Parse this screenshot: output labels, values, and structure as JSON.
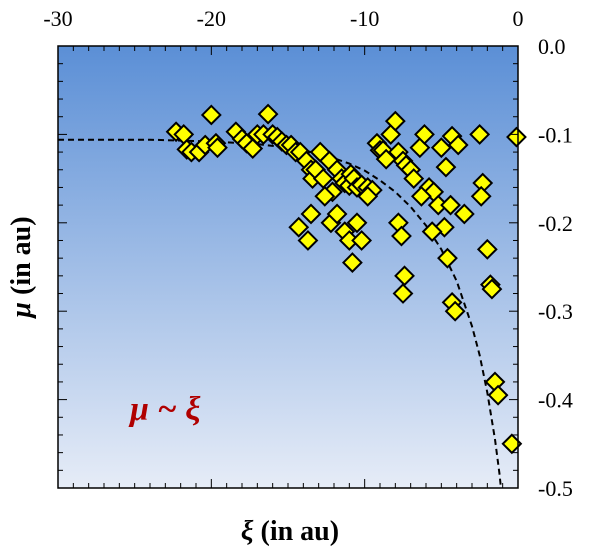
{
  "chart_data": {
    "type": "scatter",
    "xlabel_symbol": "ξ",
    "xlabel_text": " (in au)",
    "ylabel_symbol": "μ",
    "ylabel_text": " (in au)",
    "annotation": "μ ~ ξ",
    "xlim": [
      -30,
      0
    ],
    "ylim": [
      -0.5,
      0.0
    ],
    "x_ticks": [
      -30,
      -20,
      -10,
      0
    ],
    "y_ticks": [
      0.0,
      -0.1,
      -0.2,
      -0.3,
      -0.4,
      -0.5
    ],
    "x_tick_labels": [
      "-30",
      "-20",
      "-10",
      "0"
    ],
    "y_tick_labels": [
      "0.0",
      "-0.1",
      "-0.2",
      "-0.3",
      "-0.4",
      "-0.5"
    ],
    "x_minor_step": 1,
    "y_minor_step": 0.02,
    "x_axis_position": "top",
    "y_axis_position": "right",
    "grid": false,
    "background_gradient": [
      "#5b8fd6",
      "#e6ecf7"
    ],
    "marker": {
      "shape": "diamond",
      "fill": "#ffff00",
      "stroke": "#000000"
    },
    "points": [
      [
        -22.3,
        -0.097
      ],
      [
        -21.8,
        -0.1
      ],
      [
        -21.6,
        -0.117
      ],
      [
        -21.3,
        -0.12
      ],
      [
        -20.8,
        -0.12
      ],
      [
        -20.4,
        -0.112
      ],
      [
        -20.0,
        -0.078
      ],
      [
        -19.7,
        -0.11
      ],
      [
        -19.6,
        -0.115
      ],
      [
        -18.4,
        -0.097
      ],
      [
        -18.0,
        -0.105
      ],
      [
        -17.7,
        -0.11
      ],
      [
        -17.3,
        -0.116
      ],
      [
        -17.0,
        -0.1
      ],
      [
        -16.6,
        -0.1
      ],
      [
        -16.3,
        -0.077
      ],
      [
        -16.0,
        -0.1
      ],
      [
        -15.7,
        -0.103
      ],
      [
        -15.4,
        -0.108
      ],
      [
        -15.1,
        -0.112
      ],
      [
        -14.8,
        -0.112
      ],
      [
        -14.5,
        -0.12
      ],
      [
        -14.2,
        -0.12
      ],
      [
        -13.8,
        -0.13
      ],
      [
        -13.5,
        -0.14
      ],
      [
        -13.4,
        -0.15
      ],
      [
        -13.2,
        -0.14
      ],
      [
        -12.9,
        -0.12
      ],
      [
        -12.7,
        -0.15
      ],
      [
        -12.3,
        -0.13
      ],
      [
        -12.1,
        -0.165
      ],
      [
        -11.8,
        -0.14
      ],
      [
        -11.5,
        -0.15
      ],
      [
        -11.3,
        -0.155
      ],
      [
        -11.0,
        -0.158
      ],
      [
        -10.9,
        -0.145
      ],
      [
        -10.7,
        -0.15
      ],
      [
        -10.5,
        -0.16
      ],
      [
        -10.2,
        -0.157
      ],
      [
        -9.8,
        -0.16
      ],
      [
        -9.5,
        -0.163
      ],
      [
        -9.2,
        -0.11
      ],
      [
        -9.0,
        -0.118
      ],
      [
        -8.8,
        -0.118
      ],
      [
        -8.6,
        -0.128
      ],
      [
        -8.3,
        -0.1
      ],
      [
        -8.0,
        -0.085
      ],
      [
        -7.8,
        -0.12
      ],
      [
        -7.5,
        -0.13
      ],
      [
        -7.3,
        -0.135
      ],
      [
        -7.0,
        -0.14
      ],
      [
        -6.8,
        -0.15
      ],
      [
        -6.4,
        -0.115
      ],
      [
        -6.1,
        -0.1
      ],
      [
        -5.8,
        -0.16
      ],
      [
        -5.5,
        -0.165
      ],
      [
        -5.2,
        -0.18
      ],
      [
        -5.0,
        -0.115
      ],
      [
        -4.7,
        -0.137
      ],
      [
        -4.4,
        -0.18
      ],
      [
        -4.3,
        -0.102
      ],
      [
        -3.9,
        -0.112
      ],
      [
        -3.5,
        -0.19
      ],
      [
        -2.5,
        -0.1
      ],
      [
        -2.3,
        -0.155
      ],
      [
        -2.4,
        -0.17
      ],
      [
        -0.1,
        -0.103
      ],
      [
        -13.5,
        -0.19
      ],
      [
        -13.7,
        -0.22
      ],
      [
        -12.2,
        -0.2
      ],
      [
        -11.8,
        -0.19
      ],
      [
        -11.3,
        -0.21
      ],
      [
        -11.0,
        -0.22
      ],
      [
        -10.8,
        -0.245
      ],
      [
        -10.5,
        -0.2
      ],
      [
        -10.2,
        -0.22
      ],
      [
        -9.8,
        -0.17
      ],
      [
        -7.8,
        -0.2
      ],
      [
        -7.6,
        -0.215
      ],
      [
        -7.4,
        -0.26
      ],
      [
        -7.5,
        -0.28
      ],
      [
        -4.8,
        -0.205
      ],
      [
        -4.6,
        -0.24
      ],
      [
        -4.3,
        -0.29
      ],
      [
        -4.1,
        -0.3
      ],
      [
        -2.0,
        -0.23
      ],
      [
        -1.8,
        -0.27
      ],
      [
        -1.7,
        -0.275
      ],
      [
        -1.5,
        -0.38
      ],
      [
        -1.3,
        -0.395
      ],
      [
        -0.4,
        -0.45
      ],
      [
        -14.3,
        -0.205
      ],
      [
        -12.6,
        -0.17
      ],
      [
        -6.3,
        -0.17
      ],
      [
        -5.6,
        -0.21
      ]
    ],
    "fit_curve": {
      "style": "dashed",
      "x": [
        -30,
        -26,
        -24,
        -22,
        -20,
        -18,
        -17,
        -16,
        -15,
        -14,
        -13,
        -12,
        -11,
        -10,
        -9,
        -8,
        -7,
        -6,
        -5,
        -4,
        -3,
        -2.5,
        -2,
        -1.5,
        -1.2,
        -1
      ],
      "y": [
        -0.106,
        -0.106,
        -0.106,
        -0.107,
        -0.108,
        -0.11,
        -0.111,
        -0.113,
        -0.115,
        -0.118,
        -0.122,
        -0.127,
        -0.133,
        -0.141,
        -0.152,
        -0.165,
        -0.182,
        -0.203,
        -0.23,
        -0.266,
        -0.317,
        -0.35,
        -0.392,
        -0.445,
        -0.485,
        -0.52
      ]
    }
  }
}
